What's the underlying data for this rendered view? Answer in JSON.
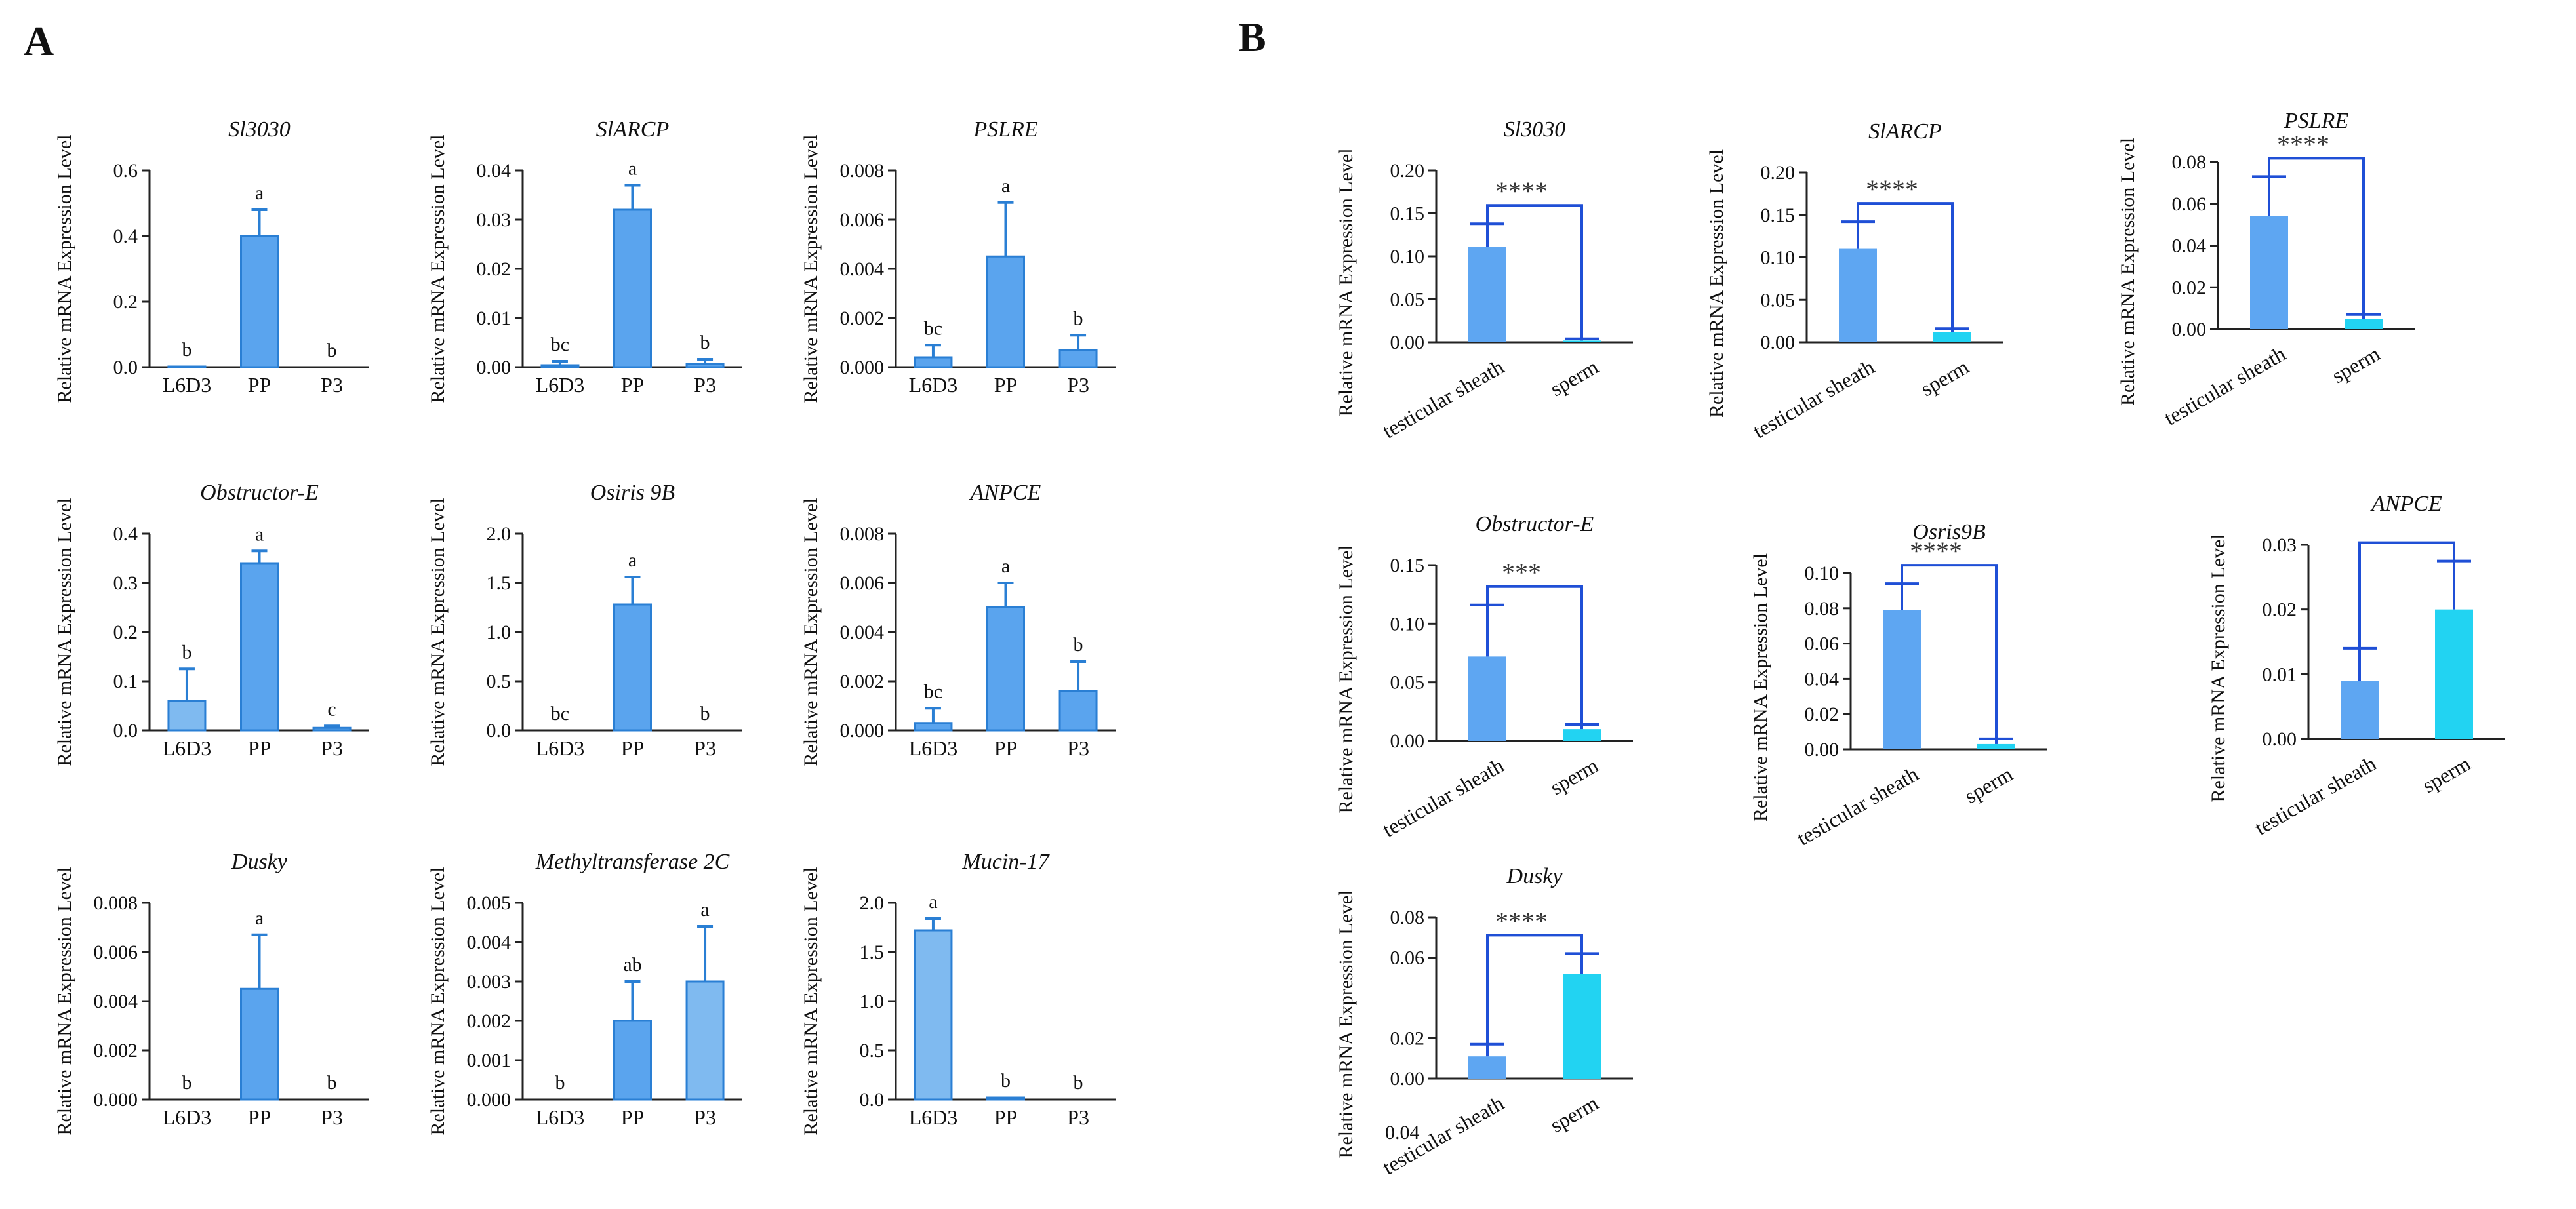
{
  "panels": [
    {
      "label": "A"
    },
    {
      "label": "B"
    }
  ],
  "chart_data": [
    {
      "panel": "A",
      "type": "bar",
      "title": "Sl3030",
      "ylabel": "Relative mRNA Expression Level",
      "categories": [
        "L6D3",
        "PP",
        "P3"
      ],
      "values": [
        0.002,
        0.4,
        0.0
      ],
      "errors": [
        0.0,
        0.08,
        0.0
      ],
      "labels": [
        "b",
        "a",
        "b"
      ],
      "ylim": [
        0,
        0.6
      ],
      "yticks": [
        "0.0",
        "0.2",
        "0.4",
        "0.6"
      ]
    },
    {
      "panel": "A",
      "type": "bar",
      "title": "SlARCP",
      "ylabel": "Relative mRNA Expression Level",
      "categories": [
        "L6D3",
        "PP",
        "P3"
      ],
      "values": [
        0.0004,
        0.032,
        0.0006
      ],
      "errors": [
        0.0008,
        0.005,
        0.001
      ],
      "labels": [
        "bc",
        "a",
        "b"
      ],
      "ylim": [
        0,
        0.04
      ],
      "yticks": [
        "0.00",
        "0.01",
        "0.02",
        "0.03",
        "0.04"
      ]
    },
    {
      "panel": "A",
      "type": "bar",
      "title": "PSLRE",
      "ylabel": "Relative mRNA Expression Level",
      "categories": [
        "L6D3",
        "PP",
        "P3"
      ],
      "values": [
        0.0004,
        0.0045,
        0.0007
      ],
      "errors": [
        0.0005,
        0.0022,
        0.0006
      ],
      "labels": [
        "bc",
        "a",
        "b"
      ],
      "ylim": [
        0,
        0.008
      ],
      "yticks": [
        "0.000",
        "0.002",
        "0.004",
        "0.006",
        "0.008"
      ]
    },
    {
      "panel": "A",
      "type": "bar",
      "title": "Obstructor-E",
      "ylabel": "Relative mRNA Expression Level",
      "categories": [
        "L6D3",
        "PP",
        "P3"
      ],
      "values": [
        0.06,
        0.34,
        0.005
      ],
      "errors": [
        0.065,
        0.025,
        0.004
      ],
      "labels": [
        "b",
        "a",
        "c"
      ],
      "ylim": [
        0,
        0.4
      ],
      "yticks": [
        "0.0",
        "0.1",
        "0.2",
        "0.3",
        "0.4"
      ]
    },
    {
      "panel": "A",
      "type": "bar",
      "title": "Osiris 9B",
      "ylabel": "Relative mRNA Expression Level",
      "categories": [
        "L6D3",
        "PP",
        "P3"
      ],
      "values": [
        0.0,
        1.28,
        0.0
      ],
      "errors": [
        0.0,
        0.28,
        0.0
      ],
      "labels": [
        "bc",
        "a",
        "b"
      ],
      "ylim": [
        0,
        2.0
      ],
      "yticks": [
        "0.0",
        "0.5",
        "1.0",
        "1.5",
        "2.0"
      ]
    },
    {
      "panel": "A",
      "type": "bar",
      "title": "ANPCE",
      "ylabel": "Relative mRNA Expression Level",
      "categories": [
        "L6D3",
        "PP",
        "P3"
      ],
      "values": [
        0.0003,
        0.005,
        0.0016
      ],
      "errors": [
        0.0006,
        0.001,
        0.0012
      ],
      "labels": [
        "bc",
        "a",
        "b"
      ],
      "ylim": [
        0,
        0.008
      ],
      "yticks": [
        "0.000",
        "0.002",
        "0.004",
        "0.006",
        "0.008"
      ]
    },
    {
      "panel": "A",
      "type": "bar",
      "title": "Dusky",
      "ylabel": "Relative mRNA Expression Level",
      "categories": [
        "L6D3",
        "PP",
        "P3"
      ],
      "values": [
        0.0,
        0.0045,
        0.0
      ],
      "errors": [
        0.0,
        0.0022,
        0.0
      ],
      "labels": [
        "b",
        "a",
        "b"
      ],
      "ylim": [
        0,
        0.008
      ],
      "yticks": [
        "0.000",
        "0.002",
        "0.004",
        "0.006",
        "0.008"
      ]
    },
    {
      "panel": "A",
      "type": "bar",
      "title": "Methyltransferase 2C",
      "ylabel": "Relative mRNA Expression Level",
      "categories": [
        "L6D3",
        "PP",
        "P3"
      ],
      "values": [
        0.0,
        0.002,
        0.003
      ],
      "errors": [
        0.0,
        0.001,
        0.0014
      ],
      "labels": [
        "b",
        "ab",
        "a"
      ],
      "ylim": [
        0,
        0.005
      ],
      "yticks": [
        "0.000",
        "0.001",
        "0.002",
        "0.003",
        "0.004",
        "0.005"
      ]
    },
    {
      "panel": "A",
      "type": "bar",
      "title": "Mucin-17",
      "ylabel": "Relative mRNA Expression Level",
      "categories": [
        "L6D3",
        "PP",
        "P3"
      ],
      "values": [
        1.72,
        0.02,
        0.0
      ],
      "errors": [
        0.12,
        0.0,
        0.0
      ],
      "labels": [
        "a",
        "b",
        "b"
      ],
      "ylim": [
        0,
        2.0
      ],
      "yticks": [
        "0.0",
        "0.5",
        "1.0",
        "1.5",
        "2.0"
      ]
    },
    {
      "panel": "B",
      "type": "bar",
      "title": "Sl3030",
      "ylabel": "Relative mRNA Expression Level",
      "categories": [
        "testicular sheath",
        "sperm"
      ],
      "values": [
        0.111,
        0.002
      ],
      "errors": [
        0.027,
        0.002
      ],
      "significance": "****",
      "ylim": [
        0,
        0.2
      ],
      "yticks": [
        "0.00",
        "0.05",
        "0.10",
        "0.15",
        "0.20"
      ]
    },
    {
      "panel": "B",
      "type": "bar",
      "title": "SlARCP",
      "ylabel": "Relative mRNA Expression Level",
      "categories": [
        "testicular sheath",
        "sperm"
      ],
      "values": [
        0.11,
        0.012
      ],
      "errors": [
        0.032,
        0.004
      ],
      "significance": "****",
      "ylim": [
        0,
        0.2
      ],
      "yticks": [
        "0.00",
        "0.05",
        "0.10",
        "0.15",
        "0.20"
      ]
    },
    {
      "panel": "B",
      "type": "bar",
      "title": "PSLRE",
      "ylabel": "Relative mRNA Expression Level",
      "categories": [
        "testicular sheath",
        "sperm"
      ],
      "values": [
        0.054,
        0.005
      ],
      "errors": [
        0.019,
        0.002
      ],
      "significance": "****",
      "ylim": [
        0,
        0.08
      ],
      "yticks": [
        "0.00",
        "0.02",
        "0.04",
        "0.06",
        "0.08"
      ]
    },
    {
      "panel": "B",
      "type": "bar",
      "title": "Obstructor-E",
      "ylabel": "Relative mRNA Expression Level",
      "categories": [
        "testicular sheath",
        "sperm"
      ],
      "values": [
        0.072,
        0.01
      ],
      "errors": [
        0.044,
        0.004
      ],
      "significance": "***",
      "ylim": [
        0,
        0.15
      ],
      "yticks": [
        "0.00",
        "0.05",
        "0.10",
        "0.15"
      ]
    },
    {
      "panel": "B",
      "type": "bar",
      "title": "Osris9B",
      "ylabel": "Relative mRNA Expression Level",
      "categories": [
        "testicular sheath",
        "sperm"
      ],
      "values": [
        0.079,
        0.003
      ],
      "errors": [
        0.015,
        0.003
      ],
      "significance": "****",
      "ylim": [
        0,
        0.1
      ],
      "yticks": [
        "0.00",
        "0.02",
        "0.04",
        "0.06",
        "0.08",
        "0.10"
      ]
    },
    {
      "panel": "B",
      "type": "bar",
      "title": "ANPCE",
      "ylabel": "Relative mRNA Expression Level",
      "categories": [
        "testicular sheath",
        "sperm"
      ],
      "values": [
        0.009,
        0.02
      ],
      "errors": [
        0.005,
        0.0075
      ],
      "significance": "",
      "ylim": [
        0,
        0.03
      ],
      "yticks": [
        "0.00",
        "0.01",
        "0.02",
        "0.03"
      ]
    },
    {
      "panel": "B",
      "type": "bar",
      "title": "Dusky",
      "ylabel": "Relative mRNA Expression Level",
      "categories": [
        "testicular sheath",
        "sperm"
      ],
      "values": [
        0.011,
        0.052
      ],
      "errors": [
        0.006,
        0.01
      ],
      "significance": "****",
      "ylim": [
        0,
        0.08
      ],
      "yticks": [
        "0.00",
        "0.02",
        "0.06",
        "0.08"
      ],
      "stray_tick": "0.04"
    }
  ]
}
